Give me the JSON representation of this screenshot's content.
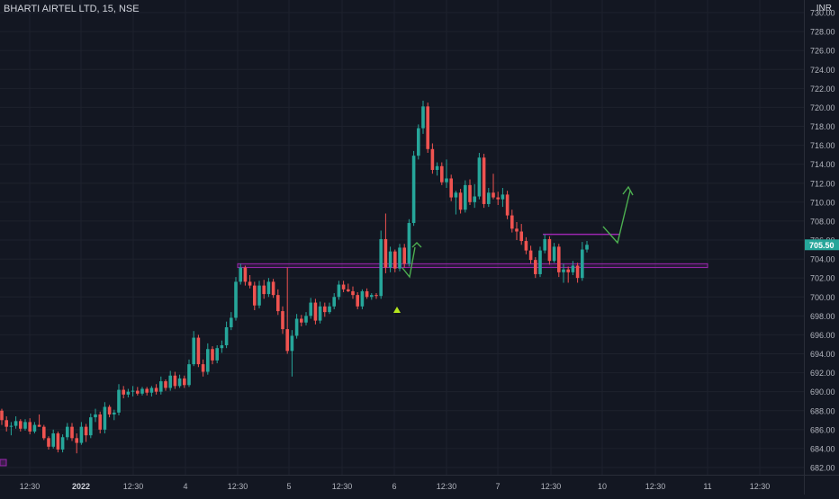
{
  "header": {
    "symbol": "BHARTI AIRTEL LTD, 15, NSE",
    "currency": "INR"
  },
  "colors": {
    "bg": "#131722",
    "grid": "#1e222d",
    "up": "#26a69a",
    "down": "#ef5350",
    "text": "#b2b5be",
    "support": "#9c27b0",
    "arrow": "#4caf50",
    "price_tag": "#26a69a",
    "signal": "#b5e61d"
  },
  "chart_data": {
    "type": "candlestick",
    "ylim": [
      681,
      732
    ],
    "y_ticks": [
      682,
      684,
      686,
      688,
      690,
      692,
      694,
      696,
      698,
      700,
      702,
      704,
      706,
      708,
      710,
      712,
      714,
      716,
      718,
      720,
      722,
      724,
      726,
      728,
      730
    ],
    "y_tick_labels": [
      "682.00",
      "684.00",
      "686.00",
      "688.00",
      "690.00",
      "692.00",
      "694.00",
      "696.00",
      "698.00",
      "700.00",
      "702.00",
      "704.00",
      "706.00",
      "708.00",
      "710.00",
      "712.00",
      "714.00",
      "716.00",
      "718.00",
      "720.00",
      "722.00",
      "724.00",
      "726.00",
      "728.00",
      "730.00"
    ],
    "x_ticks": [
      {
        "label": "12:30",
        "bold": false
      },
      {
        "label": "2022",
        "bold": true
      },
      {
        "label": "12:30",
        "bold": false
      },
      {
        "label": "4",
        "bold": false
      },
      {
        "label": "12:30",
        "bold": false
      },
      {
        "label": "5",
        "bold": false
      },
      {
        "label": "12:30",
        "bold": false
      },
      {
        "label": "6",
        "bold": false
      },
      {
        "label": "12:30",
        "bold": false
      },
      {
        "label": "7",
        "bold": false
      },
      {
        "label": "12:30",
        "bold": false
      },
      {
        "label": "10",
        "bold": false
      },
      {
        "label": "12:30",
        "bold": false
      },
      {
        "label": "11",
        "bold": false
      },
      {
        "label": "12:30",
        "bold": false
      }
    ],
    "last_price": 705.5,
    "last_price_label": "705.50",
    "support_zone": [
      703.1,
      703.5
    ],
    "resistance_level": 706.6,
    "candles": [
      [
        688.0,
        688.2,
        686.5,
        687.0
      ],
      [
        687.0,
        687.4,
        685.8,
        686.3
      ],
      [
        686.3,
        686.8,
        685.4,
        686.4
      ],
      [
        686.4,
        687.4,
        686.1,
        686.9
      ],
      [
        686.9,
        687.1,
        685.8,
        686.1
      ],
      [
        686.1,
        687.1,
        685.9,
        686.8
      ],
      [
        686.8,
        687.2,
        685.5,
        685.8
      ],
      [
        685.8,
        686.8,
        685.6,
        686.5
      ],
      [
        686.5,
        687.6,
        686.3,
        686.3
      ],
      [
        686.3,
        686.5,
        684.9,
        685.1
      ],
      [
        685.1,
        685.3,
        683.9,
        684.2
      ],
      [
        684.2,
        686.0,
        684.0,
        685.6
      ],
      [
        685.6,
        685.8,
        683.6,
        683.9
      ],
      [
        683.9,
        685.5,
        683.6,
        685.2
      ],
      [
        685.2,
        686.7,
        684.9,
        686.3
      ],
      [
        686.3,
        686.7,
        684.8,
        685.1
      ],
      [
        685.1,
        685.6,
        683.5,
        684.6
      ],
      [
        684.6,
        686.8,
        684.4,
        686.3
      ],
      [
        686.3,
        686.6,
        684.7,
        685.4
      ],
      [
        685.4,
        687.7,
        685.1,
        687.3
      ],
      [
        687.3,
        688.2,
        686.8,
        687.6
      ],
      [
        687.6,
        687.9,
        685.6,
        686.0
      ],
      [
        686.0,
        688.9,
        685.6,
        688.4
      ],
      [
        688.4,
        688.6,
        687.3,
        687.6
      ],
      [
        687.6,
        688.1,
        687.0,
        687.8
      ],
      [
        687.8,
        690.8,
        687.5,
        690.2
      ],
      [
        690.2,
        690.6,
        689.3,
        689.7
      ],
      [
        689.7,
        690.3,
        689.4,
        690.0
      ],
      [
        690.0,
        690.6,
        689.5,
        690.1
      ],
      [
        690.1,
        690.5,
        689.6,
        689.8
      ],
      [
        689.8,
        690.5,
        689.6,
        690.3
      ],
      [
        690.3,
        690.5,
        689.6,
        689.9
      ],
      [
        689.9,
        690.6,
        689.5,
        690.4
      ],
      [
        690.4,
        690.8,
        689.7,
        690.0
      ],
      [
        690.0,
        691.6,
        689.7,
        691.1
      ],
      [
        691.1,
        691.3,
        690.1,
        690.4
      ],
      [
        690.4,
        692.2,
        690.1,
        691.7
      ],
      [
        691.7,
        692.1,
        690.3,
        690.6
      ],
      [
        690.6,
        691.8,
        690.4,
        691.4
      ],
      [
        691.4,
        691.7,
        690.4,
        690.7
      ],
      [
        690.7,
        693.4,
        690.5,
        692.9
      ],
      [
        692.9,
        696.4,
        692.7,
        695.7
      ],
      [
        695.7,
        696.0,
        692.6,
        692.9
      ],
      [
        692.9,
        693.4,
        691.6,
        692.1
      ],
      [
        692.1,
        695.1,
        691.8,
        694.5
      ],
      [
        694.5,
        694.8,
        692.9,
        693.3
      ],
      [
        693.3,
        694.9,
        693.0,
        694.6
      ],
      [
        694.6,
        695.4,
        694.1,
        694.9
      ],
      [
        694.9,
        697.4,
        694.6,
        696.8
      ],
      [
        696.8,
        698.4,
        696.5,
        697.8
      ],
      [
        697.8,
        702.1,
        697.5,
        701.6
      ],
      [
        701.6,
        703.5,
        701.3,
        703.1
      ],
      [
        703.1,
        703.3,
        701.2,
        701.6
      ],
      [
        701.6,
        702.3,
        700.9,
        701.2
      ],
      [
        701.2,
        701.6,
        698.6,
        699.1
      ],
      [
        699.1,
        701.7,
        698.8,
        701.2
      ],
      [
        701.2,
        701.8,
        699.8,
        700.3
      ],
      [
        700.3,
        702.0,
        700.0,
        701.6
      ],
      [
        701.6,
        701.9,
        699.9,
        700.2
      ],
      [
        700.2,
        700.8,
        698.1,
        698.5
      ],
      [
        698.5,
        699.0,
        696.1,
        696.6
      ],
      [
        696.6,
        703.1,
        694.0,
        694.3
      ],
      [
        694.3,
        696.5,
        691.6,
        695.9
      ],
      [
        695.9,
        698.2,
        695.6,
        697.7
      ],
      [
        697.7,
        698.1,
        696.9,
        697.3
      ],
      [
        697.3,
        698.4,
        697.0,
        698.0
      ],
      [
        698.0,
        699.9,
        697.7,
        699.4
      ],
      [
        699.4,
        699.8,
        697.1,
        697.5
      ],
      [
        697.5,
        699.5,
        697.2,
        699.0
      ],
      [
        699.0,
        699.4,
        697.9,
        698.4
      ],
      [
        698.4,
        699.4,
        698.2,
        699.0
      ],
      [
        699.0,
        700.4,
        698.7,
        700.0
      ],
      [
        700.0,
        701.7,
        699.7,
        701.3
      ],
      [
        701.3,
        701.7,
        700.5,
        700.8
      ],
      [
        700.8,
        701.4,
        700.5,
        700.6
      ],
      [
        700.6,
        701.1,
        699.8,
        700.2
      ],
      [
        700.2,
        700.5,
        698.7,
        699.0
      ],
      [
        699.0,
        700.8,
        698.7,
        700.6
      ],
      [
        700.6,
        700.9,
        699.8,
        700.0
      ],
      [
        700.0,
        700.4,
        699.7,
        700.2
      ],
      [
        700.2,
        700.4,
        699.8,
        700.1
      ],
      [
        700.1,
        707.0,
        699.8,
        706.1
      ],
      [
        706.1,
        708.8,
        702.5,
        703.1
      ],
      [
        703.1,
        705.3,
        702.6,
        704.8
      ],
      [
        704.8,
        705.0,
        702.6,
        703.0
      ],
      [
        703.0,
        705.6,
        702.7,
        705.2
      ],
      [
        705.2,
        705.6,
        703.1,
        703.5
      ],
      [
        703.5,
        708.2,
        703.2,
        707.8
      ],
      [
        707.8,
        715.4,
        707.5,
        714.9
      ],
      [
        714.9,
        718.2,
        714.5,
        717.8
      ],
      [
        717.8,
        720.7,
        717.2,
        720.1
      ],
      [
        720.1,
        720.5,
        715.2,
        715.6
      ],
      [
        715.6,
        716.2,
        713.0,
        713.4
      ],
      [
        713.4,
        714.2,
        712.8,
        713.8
      ],
      [
        713.8,
        714.2,
        711.8,
        712.1
      ],
      [
        712.1,
        714.5,
        711.5,
        712.5
      ],
      [
        712.5,
        712.9,
        710.1,
        710.5
      ],
      [
        710.5,
        711.2,
        708.7,
        711.0
      ],
      [
        711.0,
        711.4,
        708.8,
        709.2
      ],
      [
        709.2,
        712.3,
        708.9,
        711.8
      ],
      [
        711.8,
        712.4,
        709.7,
        710.0
      ],
      [
        710.0,
        711.9,
        709.4,
        710.6
      ],
      [
        710.6,
        715.2,
        710.3,
        714.7
      ],
      [
        714.7,
        715.1,
        709.4,
        709.8
      ],
      [
        709.8,
        711.5,
        709.5,
        711.0
      ],
      [
        711.0,
        713.0,
        710.3,
        710.5
      ],
      [
        710.5,
        711.1,
        709.7,
        710.3
      ],
      [
        710.3,
        711.5,
        709.5,
        710.8
      ],
      [
        710.8,
        711.2,
        708.2,
        708.6
      ],
      [
        708.6,
        709.2,
        706.8,
        707.2
      ],
      [
        707.2,
        707.9,
        706.0,
        706.9
      ],
      [
        706.9,
        707.7,
        705.5,
        705.9
      ],
      [
        705.9,
        706.3,
        704.5,
        704.9
      ],
      [
        704.9,
        705.4,
        703.5,
        703.9
      ],
      [
        703.9,
        704.2,
        702.0,
        702.4
      ],
      [
        702.4,
        705.3,
        702.1,
        704.9
      ],
      [
        704.9,
        706.6,
        704.6,
        706.1
      ],
      [
        706.1,
        706.4,
        703.4,
        703.8
      ],
      [
        703.8,
        705.7,
        703.6,
        705.3
      ],
      [
        705.3,
        705.6,
        702.1,
        702.6
      ],
      [
        702.6,
        703.5,
        701.5,
        702.9
      ],
      [
        702.9,
        703.2,
        701.5,
        702.6
      ],
      [
        702.6,
        703.8,
        702.3,
        703.3
      ],
      [
        703.3,
        703.6,
        701.5,
        702.0
      ],
      [
        702.0,
        705.8,
        701.7,
        705.0
      ],
      [
        705.0,
        705.9,
        704.7,
        705.5
      ]
    ]
  }
}
